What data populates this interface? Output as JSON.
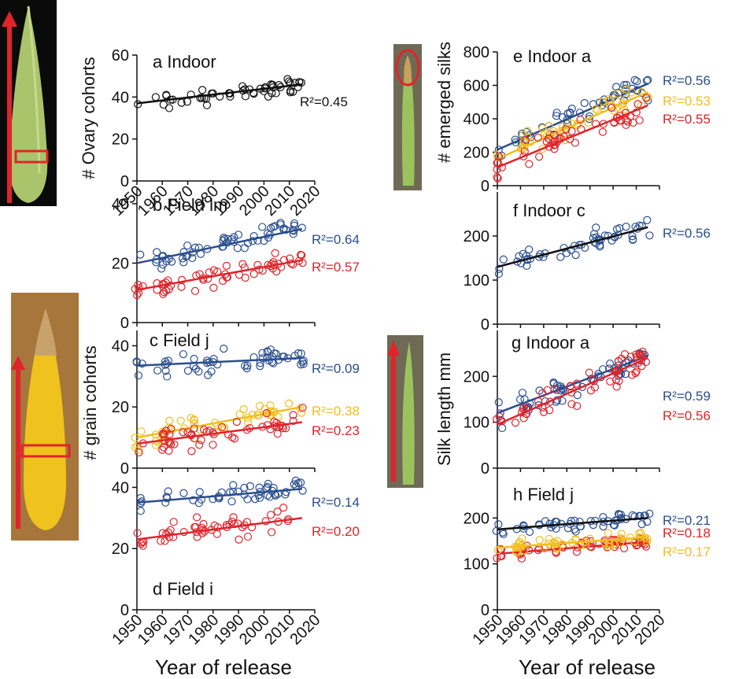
{
  "figure": {
    "left_ylabels": {
      "top": "# Ovary cohorts",
      "bottom": "# grain cohorts"
    },
    "right_ylabels": {
      "top": "# emerged silks",
      "bottom": "Silk length mm"
    },
    "xlabel_left": "Year of release",
    "xlabel_right": "Year of release",
    "colors": {
      "black": "#111111",
      "blue": "#2a4f8f",
      "red": "#e0242b",
      "yellow": "#f2be1d"
    }
  },
  "chart_data": [
    {
      "id": "a",
      "type": "scatter",
      "title": "a Indoor",
      "xlim": [
        1950,
        2020
      ],
      "ylim": [
        0,
        60
      ],
      "yticks": [
        0,
        20,
        40,
        60
      ],
      "xticks": [
        1950,
        1960,
        1970,
        1980,
        1990,
        2000,
        2010,
        2020
      ],
      "series": [
        {
          "name": "ovary",
          "color": "black",
          "r2_label": "R²=0.45",
          "fit": [
            [
              1950,
              37
            ],
            [
              2015,
              46
            ]
          ],
          "n": 55,
          "noise": 3.5,
          "seed": 11
        }
      ]
    },
    {
      "id": "b",
      "type": "scatter",
      "title": "b  Field lm",
      "xlim": [
        1950,
        2020
      ],
      "ylim": [
        0,
        45
      ],
      "yticks": [
        0,
        20,
        40
      ],
      "series": [
        {
          "name": "blue",
          "color": "blue",
          "r2_label": "R²=0.64",
          "fit": [
            [
              1950,
              20
            ],
            [
              2015,
              31.5
            ]
          ],
          "n": 60,
          "noise": 3.5,
          "seed": 21
        },
        {
          "name": "red",
          "color": "red",
          "r2_label": "R²=0.57",
          "fit": [
            [
              1950,
              11
            ],
            [
              2015,
              21
            ]
          ],
          "n": 60,
          "noise": 3.5,
          "seed": 22
        }
      ]
    },
    {
      "id": "c",
      "type": "scatter",
      "title": "c  Field j",
      "xlim": [
        1950,
        2020
      ],
      "ylim": [
        0,
        45
      ],
      "yticks": [
        0,
        20,
        40
      ],
      "series": [
        {
          "name": "blue",
          "color": "blue",
          "r2_label": "R²=0.09",
          "fit": [
            [
              1950,
              33.5
            ],
            [
              2015,
              36
            ]
          ],
          "n": 55,
          "noise": 3.5,
          "seed": 31
        },
        {
          "name": "yellow",
          "color": "yellow",
          "r2_label": "R²=0.38",
          "fit": [
            [
              1950,
              10
            ],
            [
              2015,
              20
            ]
          ],
          "n": 50,
          "noise": 4,
          "seed": 32
        },
        {
          "name": "red",
          "color": "red",
          "r2_label": "R²=0.23",
          "fit": [
            [
              1950,
              8
            ],
            [
              2015,
              15
            ]
          ],
          "n": 55,
          "noise": 4,
          "seed": 33
        }
      ]
    },
    {
      "id": "d",
      "type": "scatter",
      "title": "d  Field i",
      "xlim": [
        1950,
        2020
      ],
      "ylim": [
        0,
        45
      ],
      "yticks": [
        0,
        20,
        40
      ],
      "xticks": [
        1950,
        1960,
        1970,
        1980,
        1990,
        2000,
        2010,
        2020
      ],
      "series": [
        {
          "name": "blue",
          "color": "blue",
          "r2_label": "R²=0.14",
          "fit": [
            [
              1950,
              35
            ],
            [
              2015,
              39.5
            ]
          ],
          "n": 50,
          "noise": 3.5,
          "seed": 41
        },
        {
          "name": "red",
          "color": "red",
          "r2_label": "R²=0.20",
          "fit": [
            [
              1950,
              23
            ],
            [
              2015,
              30
            ]
          ],
          "n": 50,
          "noise": 4,
          "seed": 42
        }
      ]
    },
    {
      "id": "e",
      "type": "scatter",
      "title": "e  Indoor a",
      "xlim": [
        1950,
        2020
      ],
      "ylim": [
        0,
        800
      ],
      "yticks": [
        0,
        200,
        400,
        600,
        800
      ],
      "series": [
        {
          "name": "blue",
          "color": "blue",
          "r2_label": "R²=0.56",
          "fit": [
            [
              1950,
              215
            ],
            [
              2015,
              610
            ]
          ],
          "n": 55,
          "noise": 80,
          "seed": 51
        },
        {
          "name": "yellow",
          "color": "yellow",
          "r2_label": "R²=0.53",
          "fit": [
            [
              1950,
              160
            ],
            [
              2015,
              560
            ]
          ],
          "n": 50,
          "noise": 80,
          "seed": 52
        },
        {
          "name": "red",
          "color": "red",
          "r2_label": "R²=0.55",
          "fit": [
            [
              1950,
              110
            ],
            [
              2015,
              480
            ]
          ],
          "n": 55,
          "noise": 80,
          "seed": 53
        }
      ]
    },
    {
      "id": "f",
      "type": "scatter",
      "title": "f  Indoor c",
      "xlim": [
        1950,
        2020
      ],
      "ylim": [
        0,
        300
      ],
      "yticks": [
        0,
        100,
        200
      ],
      "series": [
        {
          "name": "blue",
          "color": "blue",
          "line_color": "black",
          "r2_label": "R²=0.56",
          "fit": [
            [
              1950,
              130
            ],
            [
              2015,
              220
            ]
          ],
          "n": 55,
          "noise": 22,
          "seed": 61
        }
      ]
    },
    {
      "id": "g",
      "type": "scatter",
      "title": "g  Indoor a",
      "xlim": [
        1950,
        2020
      ],
      "ylim": [
        0,
        300
      ],
      "yticks": [
        0,
        100,
        200
      ],
      "series": [
        {
          "name": "blue",
          "color": "blue",
          "r2_label": "R²=0.59",
          "fit": [
            [
              1950,
              120
            ],
            [
              2015,
              245
            ]
          ],
          "n": 55,
          "noise": 25,
          "seed": 71
        },
        {
          "name": "red",
          "color": "red",
          "r2_label": "R²=0.56",
          "fit": [
            [
              1950,
              95
            ],
            [
              2015,
              240
            ]
          ],
          "n": 55,
          "noise": 28,
          "seed": 72
        }
      ]
    },
    {
      "id": "h",
      "type": "scatter",
      "title": "h  Field j",
      "xlim": [
        1950,
        2020
      ],
      "ylim": [
        0,
        300
      ],
      "yticks": [
        0,
        100,
        200
      ],
      "xticks": [
        1950,
        1960,
        1970,
        1980,
        1990,
        2000,
        2010,
        2020
      ],
      "series": [
        {
          "name": "blue",
          "color": "blue",
          "line_color": "black",
          "r2_label": "R²=0.21",
          "fit": [
            [
              1950,
              175
            ],
            [
              2015,
              200
            ]
          ],
          "n": 55,
          "noise": 15,
          "seed": 81
        },
        {
          "name": "red",
          "color": "red",
          "r2_label": "R²=0.18",
          "fit": [
            [
              1950,
              122
            ],
            [
              2015,
              148
            ]
          ],
          "n": 55,
          "noise": 15,
          "seed": 82
        },
        {
          "name": "yellow",
          "color": "yellow",
          "r2_label": "R²=0.17",
          "fit": [
            [
              1950,
              135
            ],
            [
              2015,
              158
            ]
          ],
          "n": 50,
          "noise": 15,
          "seed": 83
        }
      ]
    }
  ]
}
